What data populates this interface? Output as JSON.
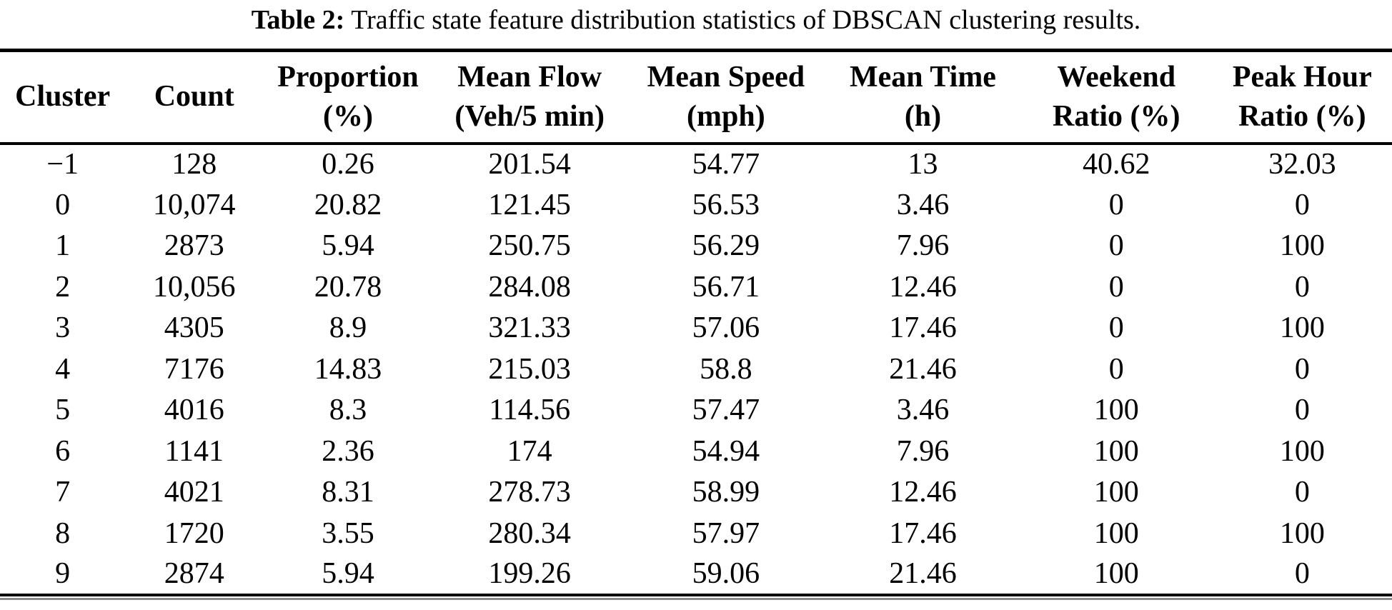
{
  "caption": {
    "label": "Table 2:",
    "text": "Traffic state feature distribution statistics of DBSCAN clustering results."
  },
  "table": {
    "columns": [
      {
        "lines": [
          "Cluster"
        ]
      },
      {
        "lines": [
          "Count"
        ]
      },
      {
        "lines": [
          "Proportion",
          "(%)"
        ]
      },
      {
        "lines": [
          "Mean Flow",
          "(Veh/5 min)"
        ]
      },
      {
        "lines": [
          "Mean Speed",
          "(mph)"
        ]
      },
      {
        "lines": [
          "Mean Time",
          "(h)"
        ]
      },
      {
        "lines": [
          "Weekend",
          "Ratio (%)"
        ]
      },
      {
        "lines": [
          "Peak Hour",
          "Ratio (%)"
        ]
      }
    ],
    "rows": [
      [
        "−1",
        "128",
        "0.26",
        "201.54",
        "54.77",
        "13",
        "40.62",
        "32.03"
      ],
      [
        "0",
        "10,074",
        "20.82",
        "121.45",
        "56.53",
        "3.46",
        "0",
        "0"
      ],
      [
        "1",
        "2873",
        "5.94",
        "250.75",
        "56.29",
        "7.96",
        "0",
        "100"
      ],
      [
        "2",
        "10,056",
        "20.78",
        "284.08",
        "56.71",
        "12.46",
        "0",
        "0"
      ],
      [
        "3",
        "4305",
        "8.9",
        "321.33",
        "57.06",
        "17.46",
        "0",
        "100"
      ],
      [
        "4",
        "7176",
        "14.83",
        "215.03",
        "58.8",
        "21.46",
        "0",
        "0"
      ],
      [
        "5",
        "4016",
        "8.3",
        "114.56",
        "57.47",
        "3.46",
        "100",
        "0"
      ],
      [
        "6",
        "1141",
        "2.36",
        "174",
        "54.94",
        "7.96",
        "100",
        "100"
      ],
      [
        "7",
        "4021",
        "8.31",
        "278.73",
        "58.99",
        "12.46",
        "100",
        "0"
      ],
      [
        "8",
        "1720",
        "3.55",
        "280.34",
        "57.97",
        "17.46",
        "100",
        "100"
      ],
      [
        "9",
        "2874",
        "5.94",
        "199.26",
        "59.06",
        "21.46",
        "100",
        "0"
      ]
    ]
  },
  "colors": {
    "text": "#000000",
    "background": "#ffffff",
    "rule": "#000000",
    "bottom_rule_secondary": "#8a8a8a"
  }
}
